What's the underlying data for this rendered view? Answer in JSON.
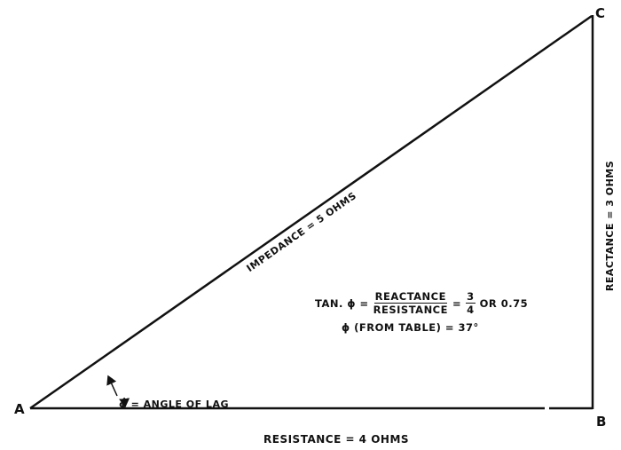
{
  "points": {
    "a": "A",
    "b": "B",
    "c": "C"
  },
  "sides": {
    "impedance": "IMPEDANCE = 5 OHMS",
    "reactance": "REACTANCE = 3 OHMS",
    "resistance": "RESISTANCE = 4 OHMS"
  },
  "angle_label": "ϕ = ANGLE OF LAG",
  "formula": {
    "lhs": "TAN. ϕ =",
    "numerator": "REACTANCE",
    "denominator": "RESISTANCE",
    "eq": "=",
    "frac_num": "3",
    "frac_den": "4",
    "tail": "OR 0.75",
    "line2": "ϕ (FROM TABLE) = 37°"
  },
  "colors": {
    "ink": "#111111",
    "paper": "#ffffff"
  }
}
